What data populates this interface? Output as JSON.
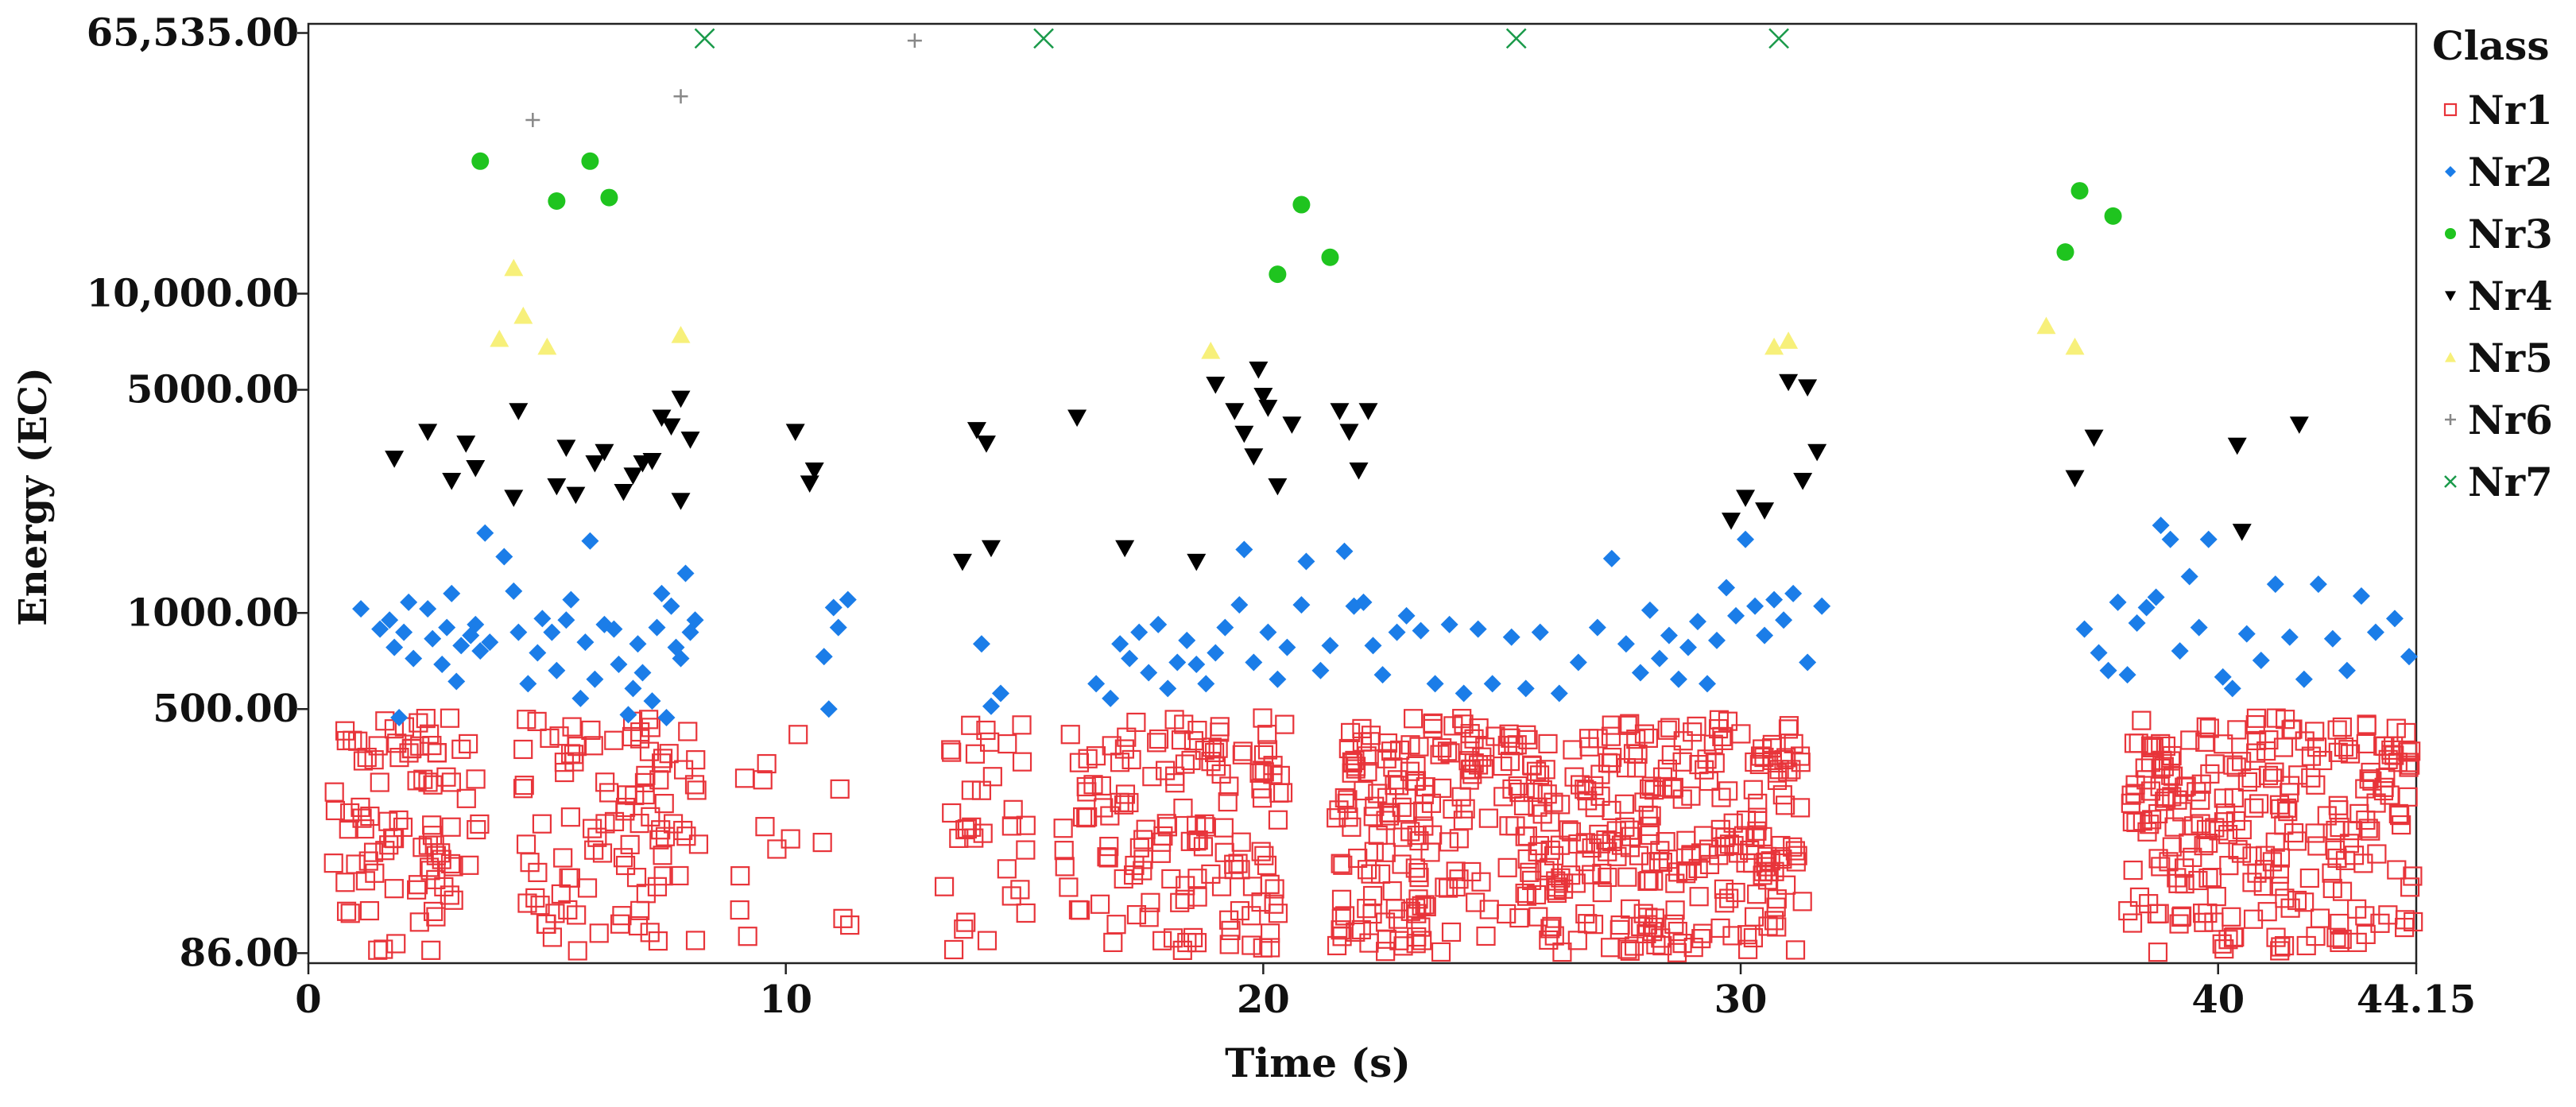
{
  "chart_data": {
    "type": "scatter",
    "title": "",
    "xlabel": "Time (s)",
    "ylabel": "Energy (EC)",
    "y_scale": "log",
    "xlim": [
      0,
      44.15
    ],
    "ylim": [
      80,
      70000
    ],
    "x_ticks": [
      {
        "value": 0,
        "label": "0"
      },
      {
        "value": 10,
        "label": "10"
      },
      {
        "value": 20,
        "label": "20"
      },
      {
        "value": 30,
        "label": "30"
      },
      {
        "value": 40,
        "label": "40"
      },
      {
        "value": 44.15,
        "label": "44.15"
      }
    ],
    "y_ticks": [
      {
        "value": 86,
        "label": "86.00"
      },
      {
        "value": 500,
        "label": "500.00"
      },
      {
        "value": 1000,
        "label": "1000.00"
      },
      {
        "value": 5000,
        "label": "5000.00"
      },
      {
        "value": 10000,
        "label": "10,000.00"
      },
      {
        "value": 65535,
        "label": "65,535.00"
      }
    ],
    "legend": {
      "title": "Class",
      "position": "right"
    },
    "series": [
      {
        "name": "Nr1",
        "marker": "open-square",
        "color": "#e8343a",
        "points": "dense cluster of points between 86 and 480 EC during active intervals (~0.5–3.5 s, 4.5–8.2 s, 9–11.5 s, 13.2–15 s, 15.8–20.4 s, 21.5–31.2 s, 38.1–44.15 s)"
      },
      {
        "name": "Nr2",
        "marker": "diamond",
        "color": "#1b7de8",
        "points": [
          [
            1.1,
            1030
          ],
          [
            1.5,
            890
          ],
          [
            1.7,
            950
          ],
          [
            1.8,
            780
          ],
          [
            2.0,
            870
          ],
          [
            1.9,
            470
          ],
          [
            2.1,
            1080
          ],
          [
            2.2,
            720
          ],
          [
            2.5,
            1030
          ],
          [
            2.6,
            830
          ],
          [
            2.8,
            690
          ],
          [
            2.9,
            900
          ],
          [
            3.0,
            1150
          ],
          [
            3.1,
            610
          ],
          [
            3.2,
            790
          ],
          [
            3.4,
            850
          ],
          [
            3.5,
            920
          ],
          [
            3.6,
            760
          ],
          [
            3.8,
            810
          ],
          [
            3.7,
            1780
          ],
          [
            4.1,
            1500
          ],
          [
            4.3,
            1170
          ],
          [
            4.4,
            870
          ],
          [
            4.6,
            600
          ],
          [
            4.8,
            750
          ],
          [
            4.9,
            960
          ],
          [
            5.1,
            870
          ],
          [
            5.2,
            660
          ],
          [
            5.4,
            950
          ],
          [
            5.5,
            1100
          ],
          [
            5.7,
            540
          ],
          [
            5.8,
            810
          ],
          [
            5.9,
            1680
          ],
          [
            6.0,
            620
          ],
          [
            6.2,
            920
          ],
          [
            6.4,
            890
          ],
          [
            6.5,
            690
          ],
          [
            6.7,
            480
          ],
          [
            6.8,
            580
          ],
          [
            6.9,
            800
          ],
          [
            7.0,
            650
          ],
          [
            7.2,
            530
          ],
          [
            7.3,
            900
          ],
          [
            7.4,
            1150
          ],
          [
            7.5,
            470
          ],
          [
            7.6,
            1050
          ],
          [
            7.7,
            780
          ],
          [
            7.9,
            1330
          ],
          [
            8.0,
            870
          ],
          [
            8.1,
            950
          ],
          [
            7.8,
            720
          ],
          [
            10.8,
            730
          ],
          [
            10.9,
            500
          ],
          [
            11.0,
            1040
          ],
          [
            11.1,
            900
          ],
          [
            11.3,
            1100
          ],
          [
            14.1,
            800
          ],
          [
            14.3,
            510
          ],
          [
            14.5,
            560
          ],
          [
            16.5,
            600
          ],
          [
            16.8,
            540
          ],
          [
            17.0,
            800
          ],
          [
            17.2,
            720
          ],
          [
            17.4,
            870
          ],
          [
            17.6,
            650
          ],
          [
            17.8,
            920
          ],
          [
            18.0,
            580
          ],
          [
            18.2,
            700
          ],
          [
            18.4,
            820
          ],
          [
            18.6,
            690
          ],
          [
            18.8,
            600
          ],
          [
            19.0,
            750
          ],
          [
            19.2,
            900
          ],
          [
            19.5,
            1060
          ],
          [
            19.6,
            1580
          ],
          [
            19.8,
            700
          ],
          [
            20.1,
            870
          ],
          [
            20.3,
            620
          ],
          [
            20.5,
            780
          ],
          [
            20.8,
            1060
          ],
          [
            20.9,
            1450
          ],
          [
            21.2,
            660
          ],
          [
            21.4,
            790
          ],
          [
            21.7,
            1560
          ],
          [
            21.9,
            1050
          ],
          [
            22.1,
            1080
          ],
          [
            22.3,
            790
          ],
          [
            22.5,
            640
          ],
          [
            22.8,
            870
          ],
          [
            23.0,
            980
          ],
          [
            23.3,
            880
          ],
          [
            23.6,
            600
          ],
          [
            23.9,
            920
          ],
          [
            24.2,
            560
          ],
          [
            24.5,
            890
          ],
          [
            24.8,
            600
          ],
          [
            25.2,
            840
          ],
          [
            25.5,
            580
          ],
          [
            25.8,
            870
          ],
          [
            26.2,
            560
          ],
          [
            26.6,
            700
          ],
          [
            27.0,
            900
          ],
          [
            27.3,
            1480
          ],
          [
            27.6,
            800
          ],
          [
            27.9,
            650
          ],
          [
            28.1,
            1020
          ],
          [
            28.3,
            720
          ],
          [
            28.5,
            850
          ],
          [
            28.7,
            620
          ],
          [
            28.9,
            780
          ],
          [
            29.1,
            940
          ],
          [
            29.3,
            600
          ],
          [
            29.5,
            820
          ],
          [
            29.7,
            1200
          ],
          [
            29.9,
            980
          ],
          [
            30.1,
            1700
          ],
          [
            30.3,
            1050
          ],
          [
            30.5,
            850
          ],
          [
            30.7,
            1100
          ],
          [
            30.9,
            950
          ],
          [
            31.1,
            1150
          ],
          [
            31.4,
            700
          ],
          [
            31.7,
            1050
          ],
          [
            37.2,
            890
          ],
          [
            37.5,
            750
          ],
          [
            37.7,
            660
          ],
          [
            37.9,
            1080
          ],
          [
            38.1,
            640
          ],
          [
            38.3,
            930
          ],
          [
            38.5,
            1040
          ],
          [
            38.7,
            1120
          ],
          [
            38.8,
            1880
          ],
          [
            39.0,
            1700
          ],
          [
            39.2,
            760
          ],
          [
            39.4,
            1300
          ],
          [
            39.6,
            900
          ],
          [
            39.8,
            1700
          ],
          [
            40.1,
            630
          ],
          [
            40.3,
            580
          ],
          [
            40.6,
            860
          ],
          [
            40.9,
            710
          ],
          [
            41.2,
            1230
          ],
          [
            41.5,
            840
          ],
          [
            41.8,
            620
          ],
          [
            42.1,
            1230
          ],
          [
            42.4,
            830
          ],
          [
            42.7,
            660
          ],
          [
            43.0,
            1130
          ],
          [
            43.3,
            870
          ],
          [
            43.7,
            960
          ],
          [
            44.0,
            730
          ]
        ]
      },
      {
        "name": "Nr3",
        "marker": "circle",
        "color": "#1fc41f",
        "points": [
          [
            3.6,
            26000
          ],
          [
            5.2,
            19500
          ],
          [
            5.9,
            26000
          ],
          [
            6.3,
            20000
          ],
          [
            20.3,
            11500
          ],
          [
            20.8,
            19000
          ],
          [
            21.4,
            13000
          ],
          [
            36.8,
            13500
          ],
          [
            37.1,
            21000
          ],
          [
            37.8,
            17500
          ]
        ]
      },
      {
        "name": "Nr4",
        "marker": "down-triangle",
        "color": "#000000",
        "points": [
          [
            1.8,
            3050
          ],
          [
            2.5,
            3700
          ],
          [
            3.0,
            2600
          ],
          [
            3.3,
            3400
          ],
          [
            3.5,
            2850
          ],
          [
            4.3,
            2300
          ],
          [
            4.4,
            4300
          ],
          [
            5.2,
            2500
          ],
          [
            5.4,
            3300
          ],
          [
            5.6,
            2350
          ],
          [
            6.0,
            2950
          ],
          [
            6.2,
            3200
          ],
          [
            6.6,
            2400
          ],
          [
            6.8,
            2700
          ],
          [
            7.0,
            2950
          ],
          [
            7.2,
            3000
          ],
          [
            7.4,
            4100
          ],
          [
            7.6,
            3850
          ],
          [
            7.8,
            4700
          ],
          [
            7.8,
            2250
          ],
          [
            8.0,
            3500
          ],
          [
            10.2,
            3700
          ],
          [
            10.5,
            2550
          ],
          [
            10.6,
            2800
          ],
          [
            13.7,
            1450
          ],
          [
            14.0,
            3750
          ],
          [
            14.2,
            3400
          ],
          [
            14.3,
            1600
          ],
          [
            16.1,
            4100
          ],
          [
            17.1,
            1600
          ],
          [
            18.6,
            1450
          ],
          [
            19.0,
            5200
          ],
          [
            19.4,
            4300
          ],
          [
            19.9,
            5800
          ],
          [
            19.6,
            3650
          ],
          [
            19.8,
            3100
          ],
          [
            20.0,
            4800
          ],
          [
            20.1,
            4400
          ],
          [
            20.3,
            2500
          ],
          [
            20.6,
            3900
          ],
          [
            21.6,
            4300
          ],
          [
            21.8,
            3700
          ],
          [
            22.2,
            4300
          ],
          [
            22.0,
            2800
          ],
          [
            29.8,
            1950
          ],
          [
            30.1,
            2300
          ],
          [
            30.5,
            2100
          ],
          [
            31.0,
            5300
          ],
          [
            31.4,
            5100
          ],
          [
            31.6,
            3200
          ],
          [
            31.3,
            2600
          ],
          [
            37.0,
            2650
          ],
          [
            37.4,
            3550
          ],
          [
            40.4,
            3350
          ],
          [
            40.5,
            1800
          ],
          [
            41.7,
            3900
          ]
        ]
      },
      {
        "name": "Nr5",
        "marker": "triangle",
        "color": "#f7f07a",
        "points": [
          [
            4.0,
            7200
          ],
          [
            4.3,
            12000
          ],
          [
            4.5,
            8500
          ],
          [
            5.0,
            6800
          ],
          [
            7.8,
            7400
          ],
          [
            18.9,
            6600
          ],
          [
            30.7,
            6800
          ],
          [
            31.0,
            7100
          ],
          [
            36.4,
            7900
          ],
          [
            37.0,
            6800
          ]
        ]
      },
      {
        "name": "Nr6",
        "marker": "plus",
        "color": "#888888",
        "points": [
          [
            4.7,
            35000
          ],
          [
            7.8,
            41500
          ],
          [
            12.7,
            62000
          ]
        ]
      },
      {
        "name": "Nr7",
        "marker": "x",
        "color": "#1a9a4a",
        "points": [
          [
            8.3,
            63000
          ],
          [
            15.4,
            63000
          ],
          [
            25.3,
            63000
          ],
          [
            30.8,
            63000
          ]
        ]
      }
    ]
  }
}
